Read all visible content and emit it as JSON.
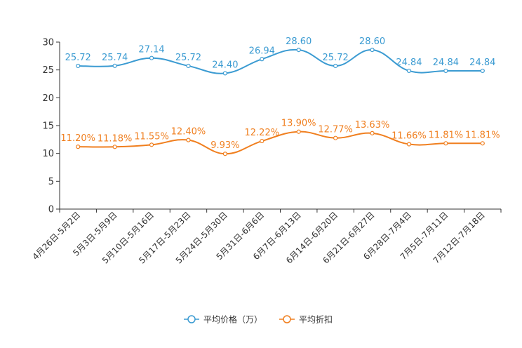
{
  "chart_data": {
    "type": "line",
    "title": "",
    "xlabel": "",
    "ylabel": "",
    "ylim": [
      0,
      30
    ],
    "yticks": [
      0,
      5,
      10,
      15,
      20,
      25,
      30
    ],
    "categories": [
      "4月26日-5月2日",
      "5月3日-5月9日",
      "5月10日-5月16日",
      "5月17日-5月23日",
      "5月24日-5月30日",
      "5月31日-6月6日",
      "6月7日-6月13日",
      "6月14日-6月20日",
      "6月21日-6月27日",
      "6月28日-7月4日",
      "7月5日-7月11日",
      "7月12日-7月18日"
    ],
    "series": [
      {
        "name": "平均价格（万）",
        "color": "#3b9bd2",
        "values": [
          25.72,
          25.74,
          27.14,
          25.72,
          24.4,
          26.94,
          28.6,
          25.72,
          28.6,
          24.84,
          24.84,
          24.84
        ],
        "labels": [
          "25.72",
          "25.74",
          "27.14",
          "25.72",
          "24.40",
          "26.94",
          "28.60",
          "25.72",
          "28.60",
          "24.84",
          "24.84",
          "24.84"
        ]
      },
      {
        "name": "平均折扣",
        "color": "#f07f1f",
        "values": [
          11.2,
          11.18,
          11.55,
          12.4,
          9.93,
          12.22,
          13.9,
          12.77,
          13.63,
          11.66,
          11.81,
          11.81
        ],
        "labels": [
          "11.20%",
          "11.18%",
          "11.55%",
          "12.40%",
          "9.93%",
          "12.22%",
          "13.90%",
          "12.77%",
          "13.63%",
          "11.66%",
          "11.81%",
          "11.81%"
        ]
      }
    ],
    "legend_position": "bottom"
  }
}
